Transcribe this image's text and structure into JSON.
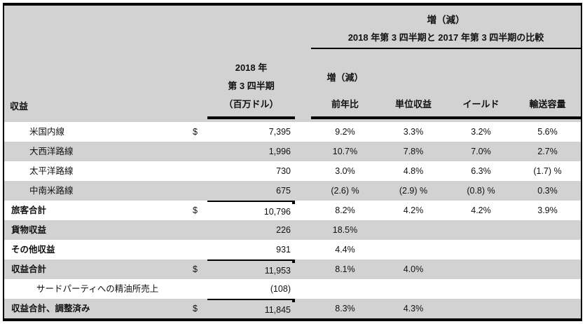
{
  "table": {
    "group_title": "増（減）",
    "comparison_title": "2018 年第 3 四半期と 2017 年第 3 四半期の比較",
    "columns": {
      "revenue": "収益",
      "amount_line1": "2018 年",
      "amount_line2": "第 3 四半期",
      "amount_line3": "（百万ドル）",
      "change": "増（減）",
      "yoy": "前年比",
      "unit_revenue": "単位収益",
      "yield": "イールド",
      "capacity": "輸送容量"
    },
    "rows": [
      {
        "label": "米国内線",
        "dollar": "$",
        "amount": "7,395",
        "yoy": "9.2%",
        "unit": "3.3%",
        "yield": "3.2%",
        "capacity": "5.6%"
      },
      {
        "label": "大西洋路線",
        "dollar": "",
        "amount": "1,996",
        "yoy": "10.7%",
        "unit": "7.8%",
        "yield": "7.0%",
        "capacity": "2.7%"
      },
      {
        "label": "太平洋路線",
        "dollar": "",
        "amount": "730",
        "yoy": "3.0%",
        "unit": "4.8%",
        "yield": "6.3%",
        "capacity": "(1.7) %"
      },
      {
        "label": "中南米路線",
        "dollar": "",
        "amount": "675",
        "yoy": "(2.6) %",
        "unit": "(2.9) %",
        "yield": "(0.8) %",
        "capacity": "0.3%"
      },
      {
        "label": "旅客合計",
        "dollar": "$",
        "amount": "10,796",
        "yoy": "8.2%",
        "unit": "4.2%",
        "yield": "4.2%",
        "capacity": "3.9%"
      },
      {
        "label": "貨物収益",
        "dollar": "",
        "amount": "226",
        "yoy": "18.5%",
        "unit": "",
        "yield": "",
        "capacity": ""
      },
      {
        "label": "その他収益",
        "dollar": "",
        "amount": "931",
        "yoy": "4.4%",
        "unit": "",
        "yield": "",
        "capacity": ""
      },
      {
        "label": "収益合計",
        "dollar": "$",
        "amount": "11,953",
        "yoy": "8.1%",
        "unit": "4.0%",
        "yield": "",
        "capacity": ""
      },
      {
        "label": "サードパーティへの精油所売上",
        "dollar": "",
        "amount": "(108)",
        "yoy": "",
        "unit": "",
        "yield": "",
        "capacity": ""
      },
      {
        "label": "収益合計、調整済み",
        "dollar": "$",
        "amount": "11,845",
        "yoy": "8.3%",
        "unit": "4.3%",
        "yield": "",
        "capacity": ""
      }
    ],
    "colors": {
      "stripe_gray": "#d2d2d2",
      "border_black": "#000000",
      "background_white": "#ffffff"
    }
  }
}
